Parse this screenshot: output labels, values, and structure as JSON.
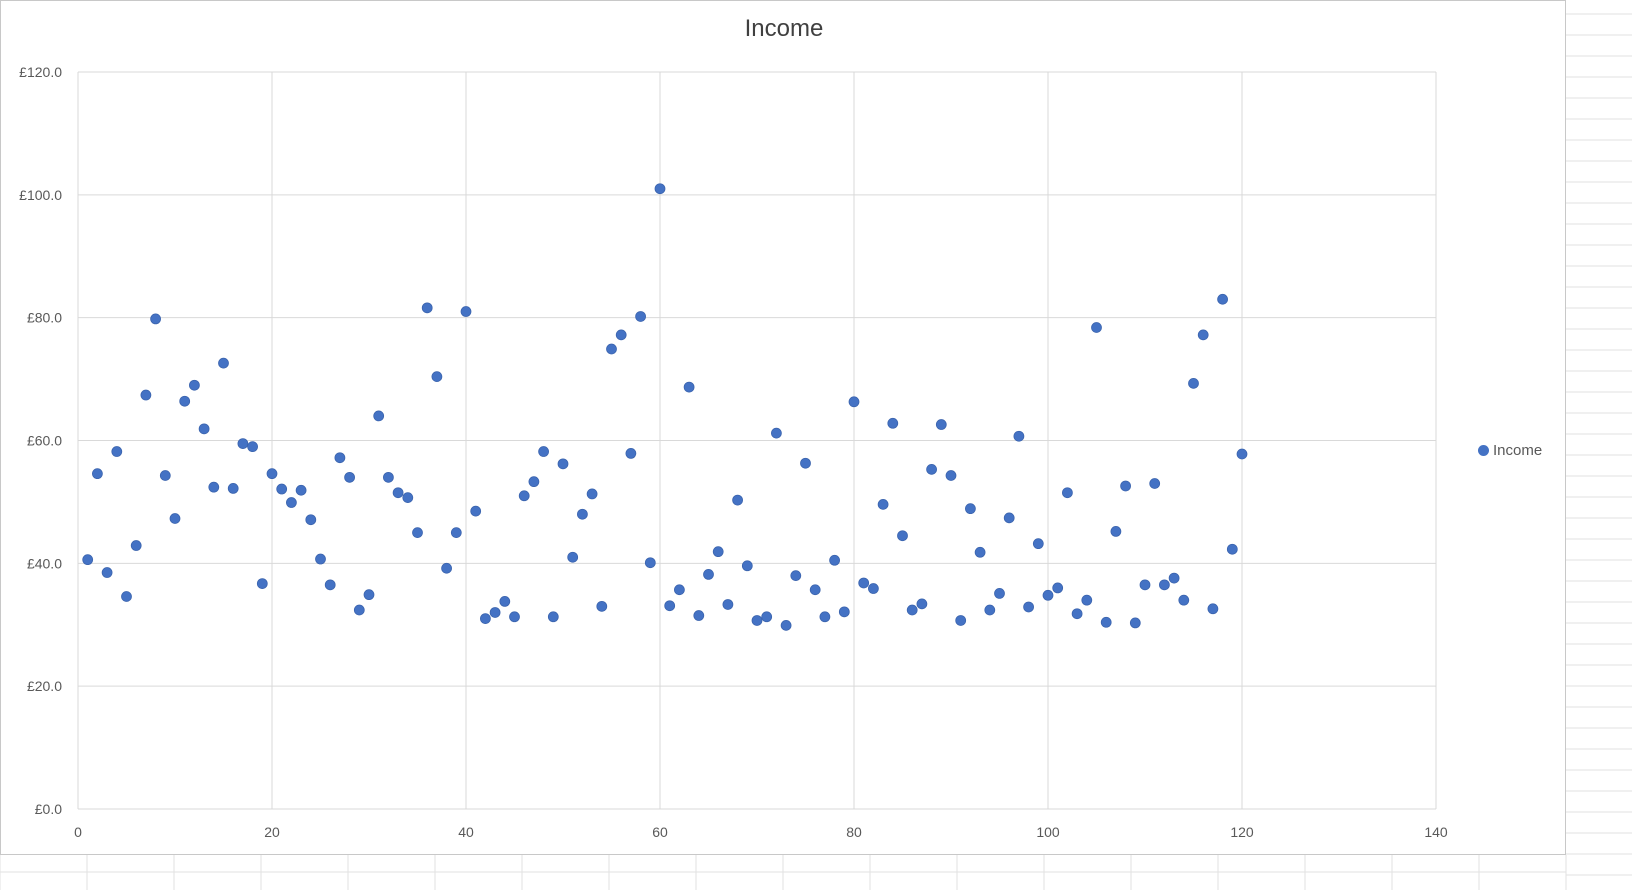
{
  "colors": {
    "marker": "#4472c4",
    "marker_edge": "#3a63ad",
    "gridline": "#d9d9d9",
    "text": "#595959"
  },
  "chart_data": {
    "type": "scatter",
    "title": "Income",
    "xlabel": "",
    "ylabel": "",
    "xlim": [
      0,
      140
    ],
    "ylim": [
      0,
      120
    ],
    "x_ticks": [
      0,
      20,
      40,
      60,
      80,
      100,
      120,
      140
    ],
    "y_ticks": [
      0,
      20,
      40,
      60,
      80,
      100,
      120
    ],
    "x_tick_labels": [
      "0",
      "20",
      "40",
      "60",
      "80",
      "100",
      "120",
      "140"
    ],
    "y_tick_labels": [
      "£0.0",
      "£20.0",
      "£40.0",
      "£60.0",
      "£80.0",
      "£100.0",
      "£120.0"
    ],
    "grid": true,
    "legend_position": "right",
    "series": [
      {
        "name": "Income",
        "x": [
          1,
          2,
          3,
          4,
          5,
          6,
          7,
          8,
          9,
          10,
          11,
          12,
          13,
          14,
          15,
          16,
          17,
          18,
          19,
          20,
          21,
          22,
          23,
          24,
          25,
          26,
          27,
          28,
          29,
          30,
          31,
          32,
          33,
          34,
          35,
          36,
          37,
          38,
          39,
          40,
          41,
          42,
          43,
          44,
          45,
          46,
          47,
          48,
          49,
          50,
          51,
          52,
          53,
          54,
          55,
          56,
          57,
          58,
          59,
          60,
          61,
          62,
          63,
          64,
          65,
          66,
          67,
          68,
          69,
          70,
          71,
          72,
          73,
          74,
          75,
          76,
          77,
          78,
          79,
          80,
          81,
          82,
          83,
          84,
          85,
          86,
          87,
          88,
          89,
          90,
          91,
          92,
          93,
          94,
          95,
          96,
          97,
          98,
          99,
          100,
          101,
          102,
          103,
          104,
          105,
          106,
          107,
          108,
          109,
          110,
          111,
          112,
          113,
          114,
          115,
          116,
          117,
          118,
          119,
          120
        ],
        "y": [
          40.6,
          54.6,
          38.5,
          58.2,
          34.6,
          42.9,
          67.4,
          79.8,
          54.3,
          47.3,
          66.4,
          69.0,
          61.9,
          52.4,
          72.6,
          52.2,
          59.5,
          59.0,
          36.7,
          54.6,
          52.1,
          49.9,
          51.9,
          47.1,
          40.7,
          36.5,
          57.2,
          54.0,
          32.4,
          34.9,
          64.0,
          54.0,
          51.5,
          50.7,
          45.0,
          81.6,
          70.4,
          39.2,
          45.0,
          81.0,
          48.5,
          31.0,
          32.0,
          33.8,
          31.3,
          51.0,
          53.3,
          58.2,
          31.3,
          56.2,
          41.0,
          48.0,
          51.3,
          33.0,
          74.9,
          77.2,
          57.9,
          80.2,
          40.1,
          101.0,
          33.1,
          35.7,
          68.7,
          31.5,
          38.2,
          41.9,
          33.3,
          50.3,
          39.6,
          30.7,
          31.3,
          61.2,
          29.9,
          38.0,
          56.3,
          35.7,
          31.3,
          40.5,
          32.1,
          66.3,
          36.8,
          35.9,
          49.6,
          62.8,
          44.5,
          32.4,
          33.4,
          55.3,
          62.6,
          54.3,
          30.7,
          48.9,
          41.8,
          32.4,
          35.1,
          47.4,
          60.7,
          32.9,
          43.2,
          34.8,
          36.0,
          51.5,
          31.8,
          34.0,
          78.4,
          30.4,
          45.2,
          52.6,
          30.3,
          36.5,
          53.0,
          36.5,
          37.6,
          34.0,
          69.3,
          77.2,
          32.6,
          83.0,
          42.3,
          57.8
        ]
      }
    ]
  }
}
